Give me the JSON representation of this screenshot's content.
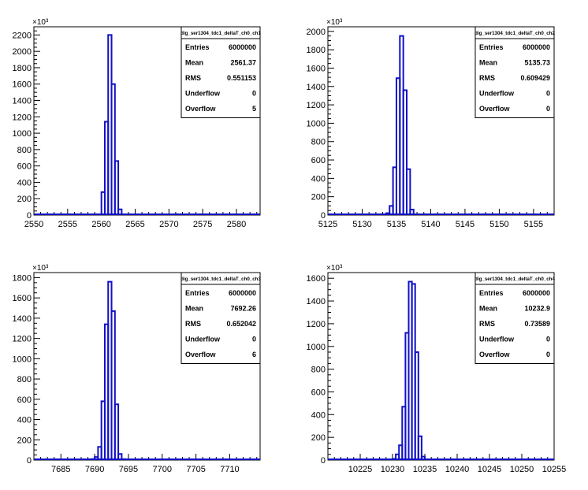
{
  "colors": {
    "histogram": "#1010c8",
    "axis": "#000000",
    "background": "#ffffff"
  },
  "chart_data": [
    {
      "type": "bar",
      "style": "step-histogram",
      "stats_title": "dig_ser1304_tdc1_deltaT_ch0_ch1",
      "stats": [
        {
          "label": "Entries",
          "value": "6000000"
        },
        {
          "label": "Mean",
          "value": "2561.37"
        },
        {
          "label": "RMS",
          "value": "0.551153"
        },
        {
          "label": "Underflow",
          "value": "0"
        },
        {
          "label": "Overflow",
          "value": "5"
        }
      ],
      "y_multiplier": "×10³",
      "xlim": [
        2550,
        2583.5
      ],
      "ylim": [
        0,
        2300
      ],
      "xticks": [
        2550,
        2555,
        2560,
        2565,
        2570,
        2575,
        2580
      ],
      "yticks": [
        0,
        200,
        400,
        600,
        800,
        1000,
        1200,
        1400,
        1600,
        1800,
        2000,
        2200
      ],
      "bins": [
        {
          "x0": 2559.5,
          "x1": 2560.0,
          "y": 10
        },
        {
          "x0": 2560.0,
          "x1": 2560.5,
          "y": 280
        },
        {
          "x0": 2560.5,
          "x1": 2561.0,
          "y": 1140
        },
        {
          "x0": 2561.0,
          "x1": 2561.5,
          "y": 2200
        },
        {
          "x0": 2561.5,
          "x1": 2562.0,
          "y": 1600
        },
        {
          "x0": 2562.0,
          "x1": 2562.5,
          "y": 660
        },
        {
          "x0": 2562.5,
          "x1": 2563.0,
          "y": 70
        }
      ]
    },
    {
      "type": "bar",
      "style": "step-histogram",
      "stats_title": "dig_ser1304_tdc1_deltaT_ch0_ch2",
      "stats": [
        {
          "label": "Entries",
          "value": "6000000"
        },
        {
          "label": "Mean",
          "value": "5135.73"
        },
        {
          "label": "RMS",
          "value": "0.609429"
        },
        {
          "label": "Underflow",
          "value": "0"
        },
        {
          "label": "Overflow",
          "value": "0"
        }
      ],
      "y_multiplier": "×10³",
      "xlim": [
        5125,
        5158
      ],
      "ylim": [
        0,
        2050
      ],
      "xticks": [
        5125,
        5130,
        5135,
        5140,
        5145,
        5150,
        5155
      ],
      "yticks": [
        0,
        200,
        400,
        600,
        800,
        1000,
        1200,
        1400,
        1600,
        1800,
        2000
      ],
      "bins": [
        {
          "x0": 5133.5,
          "x1": 5134.0,
          "y": 20
        },
        {
          "x0": 5134.0,
          "x1": 5134.5,
          "y": 100
        },
        {
          "x0": 5134.5,
          "x1": 5135.0,
          "y": 520
        },
        {
          "x0": 5135.0,
          "x1": 5135.5,
          "y": 1490
        },
        {
          "x0": 5135.5,
          "x1": 5136.0,
          "y": 1950
        },
        {
          "x0": 5136.0,
          "x1": 5136.5,
          "y": 1360
        },
        {
          "x0": 5136.5,
          "x1": 5137.0,
          "y": 500
        },
        {
          "x0": 5137.0,
          "x1": 5137.5,
          "y": 60
        }
      ]
    },
    {
      "type": "bar",
      "style": "step-histogram",
      "stats_title": "dig_ser1304_tdc1_deltaT_ch0_ch3",
      "stats": [
        {
          "label": "Entries",
          "value": "6000000"
        },
        {
          "label": "Mean",
          "value": "7692.26"
        },
        {
          "label": "RMS",
          "value": "0.652042"
        },
        {
          "label": "Underflow",
          "value": "0"
        },
        {
          "label": "Overflow",
          "value": "6"
        }
      ],
      "y_multiplier": "×10³",
      "xlim": [
        7681,
        7714.5
      ],
      "ylim": [
        0,
        1850
      ],
      "xticks": [
        7685,
        7690,
        7695,
        7700,
        7705,
        7710
      ],
      "yticks": [
        0,
        200,
        400,
        600,
        800,
        1000,
        1200,
        1400,
        1600,
        1800
      ],
      "bins": [
        {
          "x0": 7689.5,
          "x1": 7690.0,
          "y": 10
        },
        {
          "x0": 7690.0,
          "x1": 7690.5,
          "y": 30
        },
        {
          "x0": 7690.5,
          "x1": 7691.0,
          "y": 130
        },
        {
          "x0": 7691.0,
          "x1": 7691.5,
          "y": 580
        },
        {
          "x0": 7691.5,
          "x1": 7692.0,
          "y": 1340
        },
        {
          "x0": 7692.0,
          "x1": 7692.5,
          "y": 1760
        },
        {
          "x0": 7692.5,
          "x1": 7693.0,
          "y": 1470
        },
        {
          "x0": 7693.0,
          "x1": 7693.5,
          "y": 550
        },
        {
          "x0": 7693.5,
          "x1": 7694.0,
          "y": 60
        },
        {
          "x0": 7694.0,
          "x1": 7694.5,
          "y": 10
        }
      ]
    },
    {
      "type": "bar",
      "style": "step-histogram",
      "stats_title": "dig_ser1304_tdc1_deltaT_ch0_ch4",
      "stats": [
        {
          "label": "Entries",
          "value": "6000000"
        },
        {
          "label": "Mean",
          "value": "10232.9"
        },
        {
          "label": "RMS",
          "value": "0.73589"
        },
        {
          "label": "Underflow",
          "value": "0"
        },
        {
          "label": "Overflow",
          "value": "0"
        }
      ],
      "y_multiplier": "×10³",
      "xlim": [
        10220,
        10255
      ],
      "ylim": [
        0,
        1650
      ],
      "xticks": [
        10225,
        10230,
        10235,
        10240,
        10245,
        10250,
        10255
      ],
      "yticks": [
        0,
        200,
        400,
        600,
        800,
        1000,
        1200,
        1400,
        1600
      ],
      "bins": [
        {
          "x0": 10230.0,
          "x1": 10230.5,
          "y": 10
        },
        {
          "x0": 10230.5,
          "x1": 10231.0,
          "y": 50
        },
        {
          "x0": 10231.0,
          "x1": 10231.5,
          "y": 130
        },
        {
          "x0": 10231.5,
          "x1": 10232.0,
          "y": 470
        },
        {
          "x0": 10232.0,
          "x1": 10232.5,
          "y": 1120
        },
        {
          "x0": 10232.5,
          "x1": 10233.0,
          "y": 1570
        },
        {
          "x0": 10233.0,
          "x1": 10233.5,
          "y": 1550
        },
        {
          "x0": 10233.5,
          "x1": 10234.0,
          "y": 950
        },
        {
          "x0": 10234.0,
          "x1": 10234.5,
          "y": 210
        },
        {
          "x0": 10234.5,
          "x1": 10235.0,
          "y": 30
        }
      ]
    }
  ]
}
